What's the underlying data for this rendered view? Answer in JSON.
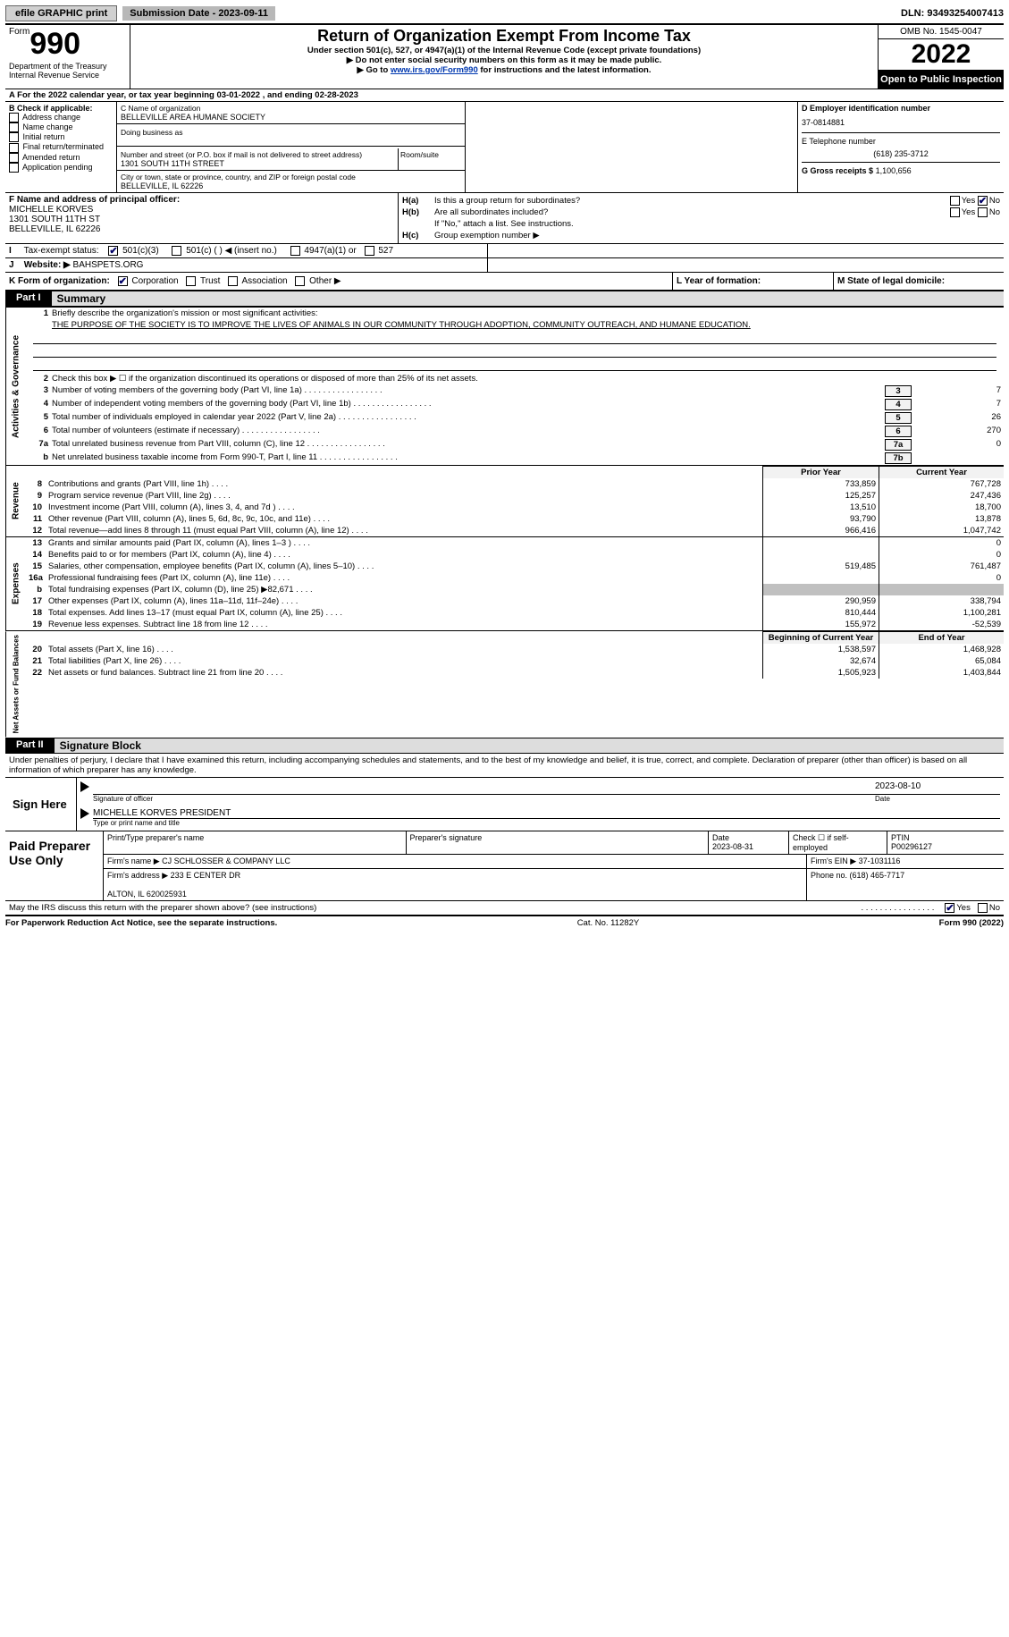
{
  "topbar": {
    "efile": "efile GRAPHIC print",
    "sub_date_label": "Submission Date - 2023-09-11",
    "dln": "DLN: 93493254007413"
  },
  "header": {
    "form_label": "Form",
    "form_number": "990",
    "title": "Return of Organization Exempt From Income Tax",
    "subtitle": "Under section 501(c), 527, or 4947(a)(1) of the Internal Revenue Code (except private foundations)",
    "ssn_warn": "▶ Do not enter social security numbers on this form as it may be made public.",
    "goto_pre": "▶ Go to ",
    "goto_link": "www.irs.gov/Form990",
    "goto_post": " for instructions and the latest information.",
    "dept": "Department of the Treasury\nInternal Revenue Service",
    "omb": "OMB No. 1545-0047",
    "year": "2022",
    "open_pub": "Open to Public Inspection"
  },
  "row_a": "A For the 2022 calendar year, or tax year beginning 03-01-2022    , and ending 02-28-2023",
  "b": {
    "check_label": "B Check if applicable:",
    "opts": [
      "Address change",
      "Name change",
      "Initial return",
      "Final return/terminated",
      "Amended return",
      "Application pending"
    ]
  },
  "c": {
    "name_label": "C Name of organization",
    "name": "BELLEVILLE AREA HUMANE SOCIETY",
    "dba_label": "Doing business as",
    "street_label": "Number and street (or P.O. box if mail is not delivered to street address)",
    "room_label": "Room/suite",
    "street": "1301 SOUTH 11TH STREET",
    "city_label": "City or town, state or province, country, and ZIP or foreign postal code",
    "city": "BELLEVILLE, IL  62226"
  },
  "d": {
    "label": "D Employer identification number",
    "val": "37-0814881"
  },
  "e": {
    "label": "E Telephone number",
    "val": "(618) 235-3712"
  },
  "g": {
    "label": "G Gross receipts $",
    "val": "1,100,656"
  },
  "f": {
    "label": "F Name and address of principal officer:",
    "name": "MICHELLE KORVES",
    "street": "1301 SOUTH 11TH ST",
    "city": "BELLEVILLE, IL  62226"
  },
  "h": {
    "a_label": "H(a)",
    "a_text": "Is this a group return for subordinates?",
    "a_no": "No",
    "b_label": "H(b)",
    "b_text": "Are all subordinates included?",
    "b_note": "If \"No,\" attach a list. See instructions.",
    "c_label": "H(c)",
    "c_text": "Group exemption number ▶",
    "yes": "Yes",
    "no": "No"
  },
  "i": {
    "label": "Tax-exempt status:",
    "opts": [
      "501(c)(3)",
      "501(c) (  ) ◀ (insert no.)",
      "4947(a)(1) or",
      "527"
    ]
  },
  "j": {
    "label": "Website: ▶",
    "val": "BAHSPETS.ORG"
  },
  "k": {
    "label": "K Form of organization:",
    "opts": [
      "Corporation",
      "Trust",
      "Association",
      "Other ▶"
    ],
    "l_label": "L Year of formation:",
    "m_label": "M State of legal domicile:"
  },
  "part1": {
    "hdr": "Part I",
    "title": "Summary"
  },
  "summary": {
    "gov_label": "Activities & Governance",
    "q1_label": "1",
    "q1_text": "Briefly describe the organization's mission or most significant activities:",
    "q1_mission": "THE PURPOSE OF THE SOCIETY IS TO IMPROVE THE LIVES OF ANIMALS IN OUR COMMUNITY THROUGH ADOPTION, COMMUNITY OUTREACH, AND HUMANE EDUCATION.",
    "q2_label": "2",
    "q2_text": "Check this box ▶ ☐ if the organization discontinued its operations or disposed of more than 25% of its net assets.",
    "rows": [
      {
        "n": "3",
        "t": "Number of voting members of the governing body (Part VI, line 1a)",
        "b": "3",
        "v": "7"
      },
      {
        "n": "4",
        "t": "Number of independent voting members of the governing body (Part VI, line 1b)",
        "b": "4",
        "v": "7"
      },
      {
        "n": "5",
        "t": "Total number of individuals employed in calendar year 2022 (Part V, line 2a)",
        "b": "5",
        "v": "26"
      },
      {
        "n": "6",
        "t": "Total number of volunteers (estimate if necessary)",
        "b": "6",
        "v": "270"
      },
      {
        "n": "7a",
        "t": "Total unrelated business revenue from Part VIII, column (C), line 12",
        "b": "7a",
        "v": "0"
      },
      {
        "n": "b",
        "t": "Net unrelated business taxable income from Form 990-T, Part I, line 11",
        "b": "7b",
        "v": ""
      }
    ]
  },
  "fin": {
    "prior_hdr": "Prior Year",
    "curr_hdr": "Current Year",
    "rev_label": "Revenue",
    "exp_label": "Expenses",
    "net_label": "Net Assets or Fund Balances",
    "begin_hdr": "Beginning of Current Year",
    "end_hdr": "End of Year",
    "rev": [
      {
        "n": "8",
        "t": "Contributions and grants (Part VIII, line 1h)",
        "p": "733,859",
        "c": "767,728"
      },
      {
        "n": "9",
        "t": "Program service revenue (Part VIII, line 2g)",
        "p": "125,257",
        "c": "247,436"
      },
      {
        "n": "10",
        "t": "Investment income (Part VIII, column (A), lines 3, 4, and 7d )",
        "p": "13,510",
        "c": "18,700"
      },
      {
        "n": "11",
        "t": "Other revenue (Part VIII, column (A), lines 5, 6d, 8c, 9c, 10c, and 11e)",
        "p": "93,790",
        "c": "13,878"
      },
      {
        "n": "12",
        "t": "Total revenue—add lines 8 through 11 (must equal Part VIII, column (A), line 12)",
        "p": "966,416",
        "c": "1,047,742"
      }
    ],
    "exp": [
      {
        "n": "13",
        "t": "Grants and similar amounts paid (Part IX, column (A), lines 1–3 )",
        "p": "",
        "c": "0"
      },
      {
        "n": "14",
        "t": "Benefits paid to or for members (Part IX, column (A), line 4)",
        "p": "",
        "c": "0"
      },
      {
        "n": "15",
        "t": "Salaries, other compensation, employee benefits (Part IX, column (A), lines 5–10)",
        "p": "519,485",
        "c": "761,487"
      },
      {
        "n": "16a",
        "t": "Professional fundraising fees (Part IX, column (A), line 11e)",
        "p": "",
        "c": "0"
      },
      {
        "n": "b",
        "t": "Total fundraising expenses (Part IX, column (D), line 25) ▶82,671",
        "p": "shade",
        "c": "shade"
      },
      {
        "n": "17",
        "t": "Other expenses (Part IX, column (A), lines 11a–11d, 11f–24e)",
        "p": "290,959",
        "c": "338,794"
      },
      {
        "n": "18",
        "t": "Total expenses. Add lines 13–17 (must equal Part IX, column (A), line 25)",
        "p": "810,444",
        "c": "1,100,281"
      },
      {
        "n": "19",
        "t": "Revenue less expenses. Subtract line 18 from line 12",
        "p": "155,972",
        "c": "-52,539"
      }
    ],
    "net": [
      {
        "n": "20",
        "t": "Total assets (Part X, line 16)",
        "p": "1,538,597",
        "c": "1,468,928"
      },
      {
        "n": "21",
        "t": "Total liabilities (Part X, line 26)",
        "p": "32,674",
        "c": "65,084"
      },
      {
        "n": "22",
        "t": "Net assets or fund balances. Subtract line 21 from line 20",
        "p": "1,505,923",
        "c": "1,403,844"
      }
    ]
  },
  "part2": {
    "hdr": "Part II",
    "title": "Signature Block"
  },
  "sig": {
    "decl": "Under penalties of perjury, I declare that I have examined this return, including accompanying schedules and statements, and to the best of my knowledge and belief, it is true, correct, and complete. Declaration of preparer (other than officer) is based on all information of which preparer has any knowledge.",
    "sign_here": "Sign Here",
    "sig_officer": "Signature of officer",
    "date": "Date",
    "date_val": "2023-08-10",
    "name_title": "MICHELLE KORVES  PRESIDENT",
    "type_print": "Type or print name and title"
  },
  "prep": {
    "label": "Paid Preparer Use Only",
    "r1": {
      "a": "Print/Type preparer's name",
      "b": "Preparer's signature",
      "c": "Date\n2023-08-31",
      "d": "Check ☐ if self-employed",
      "e": "PTIN\nP00296127"
    },
    "r2": {
      "a": "Firm's name    ▶ CJ SCHLOSSER & COMPANY LLC",
      "b": "Firm's EIN ▶ 37-1031116"
    },
    "r3": {
      "a": "Firm's address ▶ 233 E CENTER DR\n\nALTON, IL  620025931",
      "b": "Phone no. (618) 465-7717"
    }
  },
  "discuss": {
    "text": "May the IRS discuss this return with the preparer shown above? (see instructions)",
    "yes": "Yes",
    "no": "No"
  },
  "footer": {
    "l": "For Paperwork Reduction Act Notice, see the separate instructions.",
    "m": "Cat. No. 11282Y",
    "r": "Form 990 (2022)"
  }
}
